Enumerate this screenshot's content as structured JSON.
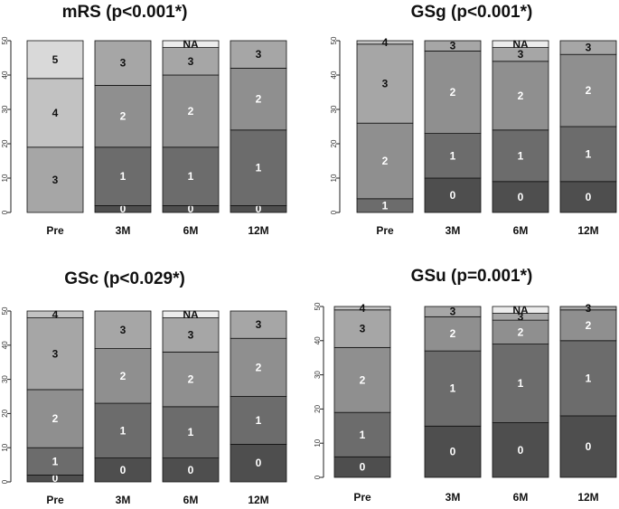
{
  "chart_data": [
    {
      "type": "bar",
      "stacked": true,
      "title": "mRS (p<0.001*)",
      "categories": [
        "Pre",
        "3M",
        "6M",
        "12M"
      ],
      "ylim": [
        0,
        50
      ],
      "yticks": [
        "0",
        "10",
        "20",
        "30",
        "40",
        "50"
      ],
      "stacks": [
        [
          {
            "label": "3",
            "value": 19
          },
          {
            "label": "4",
            "value": 20
          },
          {
            "label": "5",
            "value": 11
          }
        ],
        [
          {
            "label": "0",
            "value": 2
          },
          {
            "label": "1",
            "value": 17
          },
          {
            "label": "2",
            "value": 18
          },
          {
            "label": "3",
            "value": 13
          }
        ],
        [
          {
            "label": "0",
            "value": 2
          },
          {
            "label": "1",
            "value": 17
          },
          {
            "label": "2",
            "value": 21
          },
          {
            "label": "3",
            "value": 8
          },
          {
            "label": "NA",
            "value": 2
          }
        ],
        [
          {
            "label": "0",
            "value": 2
          },
          {
            "label": "1",
            "value": 22
          },
          {
            "label": "2",
            "value": 18
          },
          {
            "label": "3",
            "value": 8
          }
        ]
      ]
    },
    {
      "type": "bar",
      "stacked": true,
      "title": "GSg (p<0.001*)",
      "categories": [
        "Pre",
        "3M",
        "6M",
        "12M"
      ],
      "ylim": [
        0,
        50
      ],
      "yticks": [
        "0",
        "10",
        "20",
        "30",
        "40",
        "50"
      ],
      "stacks": [
        [
          {
            "label": "1",
            "value": 4
          },
          {
            "label": "2",
            "value": 22
          },
          {
            "label": "3",
            "value": 23
          },
          {
            "label": "4",
            "value": 1
          }
        ],
        [
          {
            "label": "0",
            "value": 10
          },
          {
            "label": "1",
            "value": 13
          },
          {
            "label": "2",
            "value": 24
          },
          {
            "label": "3",
            "value": 3
          }
        ],
        [
          {
            "label": "0",
            "value": 9
          },
          {
            "label": "1",
            "value": 15
          },
          {
            "label": "2",
            "value": 20
          },
          {
            "label": "3",
            "value": 4
          },
          {
            "label": "NA",
            "value": 2
          }
        ],
        [
          {
            "label": "0",
            "value": 9
          },
          {
            "label": "1",
            "value": 16
          },
          {
            "label": "2",
            "value": 21
          },
          {
            "label": "3",
            "value": 4
          }
        ]
      ]
    },
    {
      "type": "bar",
      "stacked": true,
      "title": "GSc (p<0.029*)",
      "categories": [
        "Pre",
        "3M",
        "6M",
        "12M"
      ],
      "ylim": [
        0,
        50
      ],
      "yticks": [
        "0",
        "10",
        "20",
        "30",
        "40",
        "50"
      ],
      "stacks": [
        [
          {
            "label": "0",
            "value": 2
          },
          {
            "label": "1",
            "value": 8
          },
          {
            "label": "2",
            "value": 17
          },
          {
            "label": "3",
            "value": 21
          },
          {
            "label": "4",
            "value": 2
          }
        ],
        [
          {
            "label": "0",
            "value": 7
          },
          {
            "label": "1",
            "value": 16
          },
          {
            "label": "2",
            "value": 16
          },
          {
            "label": "3",
            "value": 11
          }
        ],
        [
          {
            "label": "0",
            "value": 7
          },
          {
            "label": "1",
            "value": 15
          },
          {
            "label": "2",
            "value": 16
          },
          {
            "label": "3",
            "value": 10
          },
          {
            "label": "NA",
            "value": 2
          }
        ],
        [
          {
            "label": "0",
            "value": 11
          },
          {
            "label": "1",
            "value": 14
          },
          {
            "label": "2",
            "value": 17
          },
          {
            "label": "3",
            "value": 8
          }
        ]
      ]
    },
    {
      "type": "bar",
      "stacked": true,
      "title": "GSu (p=0.001*)",
      "categories": [
        "Pre",
        "3M",
        "6M",
        "12M"
      ],
      "ylim": [
        0,
        50
      ],
      "yticks": [
        "0",
        "10",
        "20",
        "30",
        "40",
        "50"
      ],
      "stacks": [
        [
          {
            "label": "0",
            "value": 6
          },
          {
            "label": "1",
            "value": 13
          },
          {
            "label": "2",
            "value": 19
          },
          {
            "label": "3",
            "value": 11
          },
          {
            "label": "4",
            "value": 1
          }
        ],
        [
          {
            "label": "0",
            "value": 15
          },
          {
            "label": "1",
            "value": 22
          },
          {
            "label": "2",
            "value": 10
          },
          {
            "label": "3",
            "value": 3
          }
        ],
        [
          {
            "label": "0",
            "value": 16
          },
          {
            "label": "1",
            "value": 23
          },
          {
            "label": "2",
            "value": 7
          },
          {
            "label": "3",
            "value": 2
          },
          {
            "label": "NA",
            "value": 2
          }
        ],
        [
          {
            "label": "0",
            "value": 18
          },
          {
            "label": "1",
            "value": 22
          },
          {
            "label": "2",
            "value": 9
          },
          {
            "label": "3",
            "value": 1
          }
        ]
      ]
    }
  ],
  "colors": {
    "0": "#4e4e4e",
    "1": "#6c6c6c",
    "2": "#8f8f8f",
    "3": "#a6a6a6",
    "4": "#c2c2c2",
    "5": "#d9d9d9",
    "NA": "#ececec",
    "light_text_labels": [
      "0",
      "1",
      "2"
    ]
  }
}
